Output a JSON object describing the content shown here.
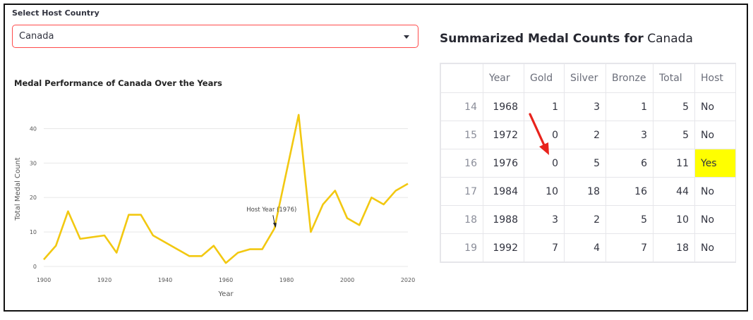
{
  "selector": {
    "label": "Select Host Country",
    "value": "Canada"
  },
  "chart_title": "Medal Performance of Canada Over the Years",
  "table": {
    "title_prefix": "Summarized Medal Counts for",
    "title_country": "Canada",
    "headers": [
      "",
      "Year",
      "Gold",
      "Silver",
      "Bronze",
      "Total",
      "Host"
    ],
    "rows": [
      [
        "14",
        "1968",
        "1",
        "3",
        "1",
        "5",
        "No"
      ],
      [
        "15",
        "1972",
        "0",
        "2",
        "3",
        "5",
        "No"
      ],
      [
        "16",
        "1976",
        "0",
        "5",
        "6",
        "11",
        "Yes"
      ],
      [
        "17",
        "1984",
        "10",
        "18",
        "16",
        "44",
        "No"
      ],
      [
        "18",
        "1988",
        "3",
        "2",
        "5",
        "10",
        "No"
      ],
      [
        "19",
        "1992",
        "7",
        "4",
        "7",
        "18",
        "No"
      ]
    ]
  },
  "colors": {
    "line": "#f2c811",
    "highlight": "#ffff00",
    "select_border": "#ff4b4b",
    "annotation_arrow": "#e8231c"
  },
  "chart_data": {
    "type": "line",
    "title": "Medal Performance of Canada Over the Years",
    "xlabel": "Year",
    "ylabel": "Total Medal Count",
    "xlim": [
      1900,
      2020
    ],
    "ylim": [
      0,
      45
    ],
    "xticks": [
      1900,
      1920,
      1940,
      1960,
      1980,
      2000,
      2020
    ],
    "yticks": [
      0,
      10,
      20,
      30,
      40
    ],
    "grid": true,
    "series": [
      {
        "x": [
          1900,
          1904,
          1908,
          1912,
          1920,
          1924,
          1928,
          1932,
          1936,
          1948,
          1952,
          1956,
          1960,
          1964,
          1968,
          1972,
          1976,
          1984,
          1988,
          1992,
          1996,
          2000,
          2004,
          2008,
          2012,
          2016,
          2020
        ],
        "y": [
          2,
          6,
          16,
          8,
          9,
          4,
          15,
          15,
          9,
          3,
          3,
          6,
          1,
          4,
          5,
          5,
          11,
          44,
          10,
          18,
          22,
          14,
          12,
          20,
          18,
          22,
          24
        ]
      }
    ],
    "annotations": [
      {
        "text": "Host Year (1976)",
        "x": 1976,
        "y": 11
      }
    ]
  }
}
